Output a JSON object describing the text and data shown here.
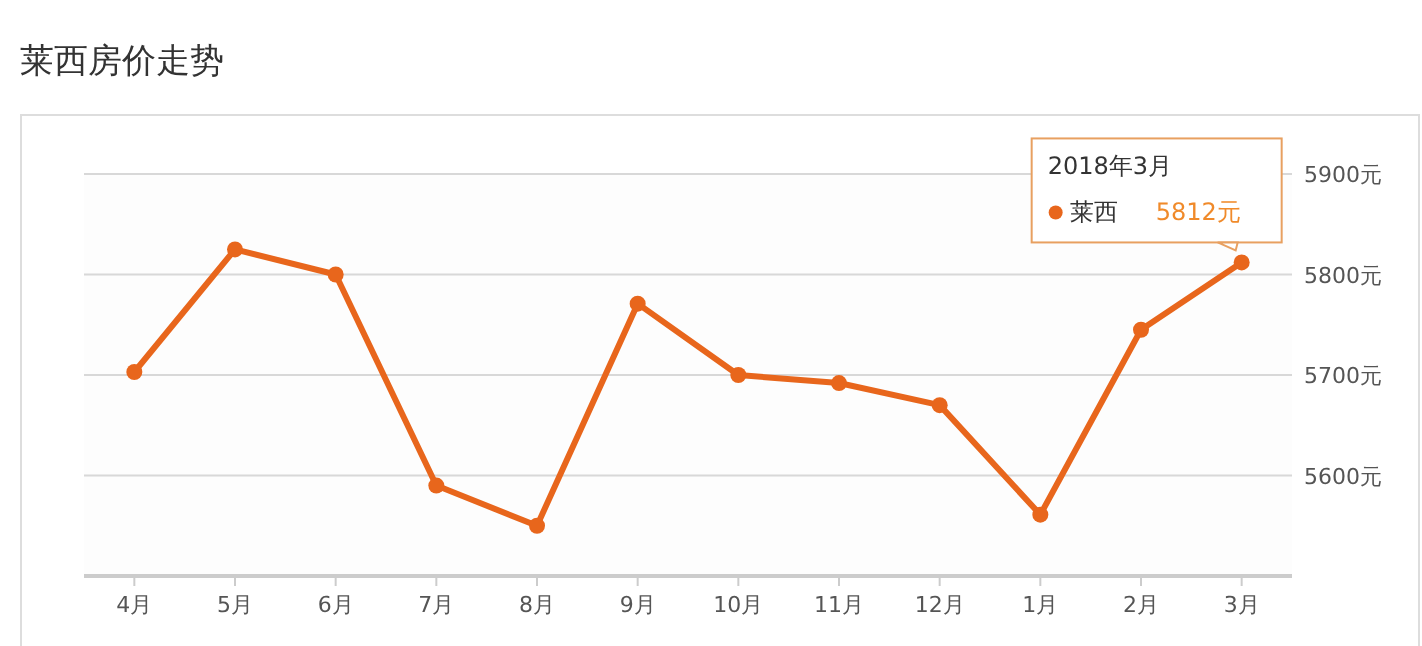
{
  "chart_data": {
    "type": "line",
    "title": "莱西房价走势",
    "categories": [
      "4月",
      "5月",
      "6月",
      "7月",
      "8月",
      "9月",
      "10月",
      "11月",
      "12月",
      "1月",
      "2月",
      "3月"
    ],
    "series": [
      {
        "name": "莱西",
        "color": "#e8661c",
        "values": [
          5703,
          5825,
          5800,
          5590,
          5550,
          5771,
          5700,
          5692,
          5670,
          5561,
          5745,
          5812
        ],
        "value_labels": [
          null,
          null,
          null,
          null,
          null,
          null,
          null,
          null,
          null,
          null,
          null,
          "5812元"
        ]
      }
    ],
    "ylim": [
      5500,
      5900
    ],
    "yticks": [
      {
        "value": 5600,
        "label": "5600元"
      },
      {
        "value": 5700,
        "label": "5700元"
      },
      {
        "value": 5800,
        "label": "5800元"
      },
      {
        "value": 5900,
        "label": "5900元"
      }
    ],
    "grid": "y",
    "marker": "circle",
    "line_style": "solid",
    "legend": "top right",
    "annotations": [
      "2018年3月"
    ]
  }
}
